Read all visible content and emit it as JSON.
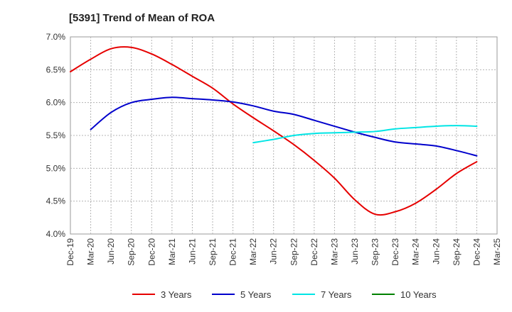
{
  "chart_data": {
    "type": "line",
    "title": "[5391]  Trend of Mean of ROA",
    "xlabel": "",
    "ylabel": "",
    "x_ticks": [
      "Dec-19",
      "Mar-20",
      "Jun-20",
      "Sep-20",
      "Dec-20",
      "Mar-21",
      "Jun-21",
      "Sep-21",
      "Dec-21",
      "Mar-22",
      "Jun-22",
      "Sep-22",
      "Dec-22",
      "Mar-23",
      "Jun-23",
      "Sep-23",
      "Dec-23",
      "Mar-24",
      "Jun-24",
      "Sep-24",
      "Dec-24",
      "Mar-25"
    ],
    "y_ticks": [
      "7.0%",
      "6.5%",
      "6.0%",
      "5.5%",
      "5.0%",
      "4.5%",
      "4.0%"
    ],
    "ylim": [
      4.0,
      7.0
    ],
    "grid": "both, dashed",
    "legend_position": "bottom",
    "series": [
      {
        "name": "3 Years",
        "color": "#e60000",
        "points": [
          [
            "Dec-19",
            6.47
          ],
          [
            "Mar-20",
            6.66
          ],
          [
            "Jun-20",
            6.82
          ],
          [
            "Sep-20",
            6.84
          ],
          [
            "Dec-20",
            6.74
          ],
          [
            "Mar-21",
            6.58
          ],
          [
            "Jun-21",
            6.4
          ],
          [
            "Sep-21",
            6.22
          ],
          [
            "Dec-21",
            5.98
          ],
          [
            "Mar-22",
            5.77
          ],
          [
            "Jun-22",
            5.57
          ],
          [
            "Sep-22",
            5.36
          ],
          [
            "Dec-22",
            5.12
          ],
          [
            "Mar-23",
            4.85
          ],
          [
            "Jun-23",
            4.52
          ],
          [
            "Sep-23",
            4.3
          ],
          [
            "Dec-23",
            4.34
          ],
          [
            "Mar-24",
            4.47
          ],
          [
            "Jun-24",
            4.68
          ],
          [
            "Sep-24",
            4.92
          ],
          [
            "Dec-24",
            5.1
          ]
        ]
      },
      {
        "name": "5 Years",
        "color": "#0000cc",
        "points": [
          [
            "Mar-20",
            5.59
          ],
          [
            "Jun-20",
            5.85
          ],
          [
            "Sep-20",
            6.0
          ],
          [
            "Dec-20",
            6.05
          ],
          [
            "Mar-21",
            6.08
          ],
          [
            "Jun-21",
            6.06
          ],
          [
            "Sep-21",
            6.04
          ],
          [
            "Dec-21",
            6.01
          ],
          [
            "Mar-22",
            5.95
          ],
          [
            "Jun-22",
            5.87
          ],
          [
            "Sep-22",
            5.82
          ],
          [
            "Dec-22",
            5.73
          ],
          [
            "Mar-23",
            5.64
          ],
          [
            "Jun-23",
            5.55
          ],
          [
            "Sep-23",
            5.47
          ],
          [
            "Dec-23",
            5.4
          ],
          [
            "Mar-24",
            5.37
          ],
          [
            "Jun-24",
            5.34
          ],
          [
            "Sep-24",
            5.27
          ],
          [
            "Dec-24",
            5.19
          ]
        ]
      },
      {
        "name": "7 Years",
        "color": "#00e5e5",
        "points": [
          [
            "Mar-22",
            5.39
          ],
          [
            "Jun-22",
            5.44
          ],
          [
            "Sep-22",
            5.5
          ],
          [
            "Dec-22",
            5.53
          ],
          [
            "Mar-23",
            5.54
          ],
          [
            "Jun-23",
            5.55
          ],
          [
            "Sep-23",
            5.56
          ],
          [
            "Dec-23",
            5.6
          ],
          [
            "Mar-24",
            5.62
          ],
          [
            "Jun-24",
            5.64
          ],
          [
            "Sep-24",
            5.65
          ],
          [
            "Dec-24",
            5.64
          ]
        ]
      },
      {
        "name": "10 Years",
        "color": "#008000",
        "points": []
      }
    ]
  }
}
